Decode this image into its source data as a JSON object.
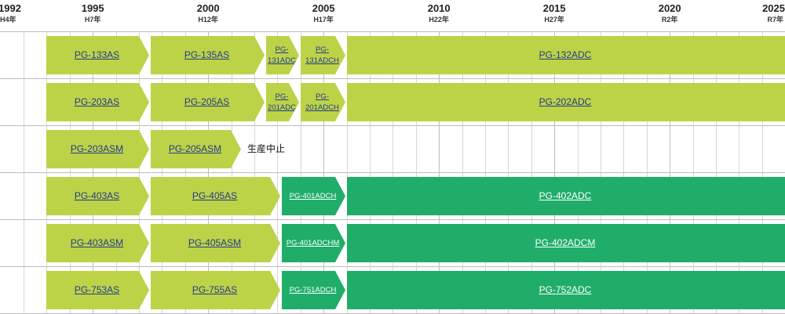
{
  "timeline": {
    "start_year": 1992,
    "end_year": 2025,
    "years": [
      {
        "year": "1992",
        "era": "H4年",
        "value": 1992
      },
      {
        "year": "1995",
        "era": "H7年",
        "value": 1995
      },
      {
        "year": "2000",
        "era": "H12年",
        "value": 2000
      },
      {
        "year": "2005",
        "era": "H17年",
        "value": 2005
      },
      {
        "year": "2010",
        "era": "H22年",
        "value": 2010
      },
      {
        "year": "2015",
        "era": "H27年",
        "value": 2015
      },
      {
        "year": "2020",
        "era": "R2年",
        "value": 2020
      },
      {
        "year": "2025",
        "era": "R7年",
        "value": 2025
      }
    ]
  },
  "colors": {
    "light_green": "#bcd348",
    "dark_green": "#20ad6a",
    "link_blue": "#243a8c"
  },
  "rows": [
    {
      "bars": [
        {
          "label": "PG-133AS",
          "start": 1993,
          "end": 1997.5,
          "color": "light",
          "arrow": true
        },
        {
          "label": "PG-135AS",
          "start": 1997.5,
          "end": 2002.5,
          "color": "light",
          "arrow": true
        },
        {
          "label": "PG-131ADC",
          "start": 2002.5,
          "end": 2004,
          "color": "light",
          "arrow": true,
          "small": true
        },
        {
          "label": "PG-131ADCH",
          "start": 2004,
          "end": 2006,
          "color": "light",
          "arrow": true,
          "small": true
        },
        {
          "label": "PG-132ADC",
          "start": 2006,
          "end": 2025.5,
          "color": "light",
          "arrow": false
        }
      ]
    },
    {
      "bars": [
        {
          "label": "PG-203AS",
          "start": 1993,
          "end": 1997.5,
          "color": "light",
          "arrow": true
        },
        {
          "label": "PG-205AS",
          "start": 1997.5,
          "end": 2002.5,
          "color": "light",
          "arrow": true
        },
        {
          "label": "PG-201ADC",
          "start": 2002.5,
          "end": 2004,
          "color": "light",
          "arrow": true,
          "small": true
        },
        {
          "label": "PG-201ADCH",
          "start": 2004,
          "end": 2006,
          "color": "light",
          "arrow": true,
          "small": true
        },
        {
          "label": "PG-202ADC",
          "start": 2006,
          "end": 2025.5,
          "color": "light",
          "arrow": false
        }
      ]
    },
    {
      "bars": [
        {
          "label": "PG-203ASM",
          "start": 1993,
          "end": 1997.5,
          "color": "light",
          "arrow": true
        },
        {
          "label": "PG-205ASM",
          "start": 1997.5,
          "end": 2001.5,
          "color": "light",
          "arrow": true
        }
      ],
      "note": "生産中止",
      "note_at": 2001.7
    },
    {
      "bars": [
        {
          "label": "PG-403AS",
          "start": 1993,
          "end": 1997.5,
          "color": "light",
          "arrow": true
        },
        {
          "label": "PG-405AS",
          "start": 1997.5,
          "end": 2003.2,
          "color": "light",
          "arrow": true
        },
        {
          "label": "PG-401ADCH",
          "start": 2003.2,
          "end": 2006,
          "color": "dark",
          "arrow": true,
          "small": true
        },
        {
          "label": "PG-402ADC",
          "start": 2006,
          "end": 2025.5,
          "color": "dark",
          "arrow": false
        }
      ]
    },
    {
      "bars": [
        {
          "label": "PG-403ASM",
          "start": 1993,
          "end": 1997.5,
          "color": "light",
          "arrow": true
        },
        {
          "label": "PG-405ASM",
          "start": 1997.5,
          "end": 2003.2,
          "color": "light",
          "arrow": true
        },
        {
          "label": "PG-401ADCHM",
          "start": 2003.2,
          "end": 2006,
          "color": "dark",
          "arrow": true,
          "small": true
        },
        {
          "label": "PG-402ADCM",
          "start": 2006,
          "end": 2025.5,
          "color": "dark",
          "arrow": false
        }
      ]
    },
    {
      "bars": [
        {
          "label": "PG-753AS",
          "start": 1993,
          "end": 1997.5,
          "color": "light",
          "arrow": true
        },
        {
          "label": "PG-755AS",
          "start": 1997.5,
          "end": 2003.2,
          "color": "light",
          "arrow": true
        },
        {
          "label": "PG-751ADCH",
          "start": 2003.2,
          "end": 2006,
          "color": "dark",
          "arrow": true,
          "small": true
        },
        {
          "label": "PG-752ADC",
          "start": 2006,
          "end": 2025.5,
          "color": "dark",
          "arrow": false
        }
      ]
    }
  ]
}
